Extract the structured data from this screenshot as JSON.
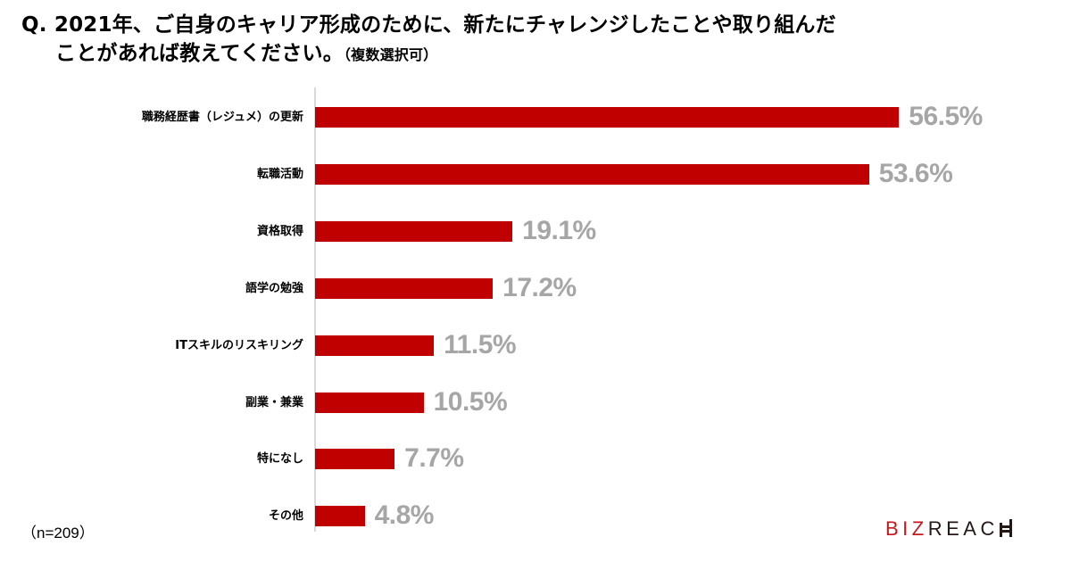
{
  "title": {
    "line1": "Q. 2021年、ご自身のキャリア形成のために、新たにチャレンジしたことや取り組んだ",
    "line2": "ことがあれば教えてください。",
    "sub": "（複数選択可）"
  },
  "note": "（n=209）",
  "logo": {
    "biz": "BIZ",
    "reach": "REAC"
  },
  "colors": {
    "bar": "#c00000",
    "value_label": "#a6a6a6",
    "axis": "#d9d9d9",
    "logo_red": "#c8161e"
  },
  "chart_data": {
    "type": "bar",
    "orientation": "horizontal",
    "title": "Q. 2021年、ご自身のキャリア形成のために、新たにチャレンジしたことや取り組んだことがあれば教えてください。（複数選択可）",
    "categories": [
      "職務経歴書（レジュメ）の更新",
      "転職活動",
      "資格取得",
      "語学の勉強",
      "ITスキルのリスキリング",
      "副業・兼業",
      "特になし",
      "その他"
    ],
    "values": [
      56.5,
      53.6,
      19.1,
      17.2,
      11.5,
      10.5,
      7.7,
      4.8
    ],
    "value_labels": [
      "56.5%",
      "53.6%",
      "19.1%",
      "17.2%",
      "11.5%",
      "10.5%",
      "7.7%",
      "4.8%"
    ],
    "unit": "%",
    "xlabel": "",
    "ylabel": "",
    "xlim": [
      0,
      60
    ],
    "grid": false,
    "legend": null,
    "sample_size": "n=209"
  }
}
